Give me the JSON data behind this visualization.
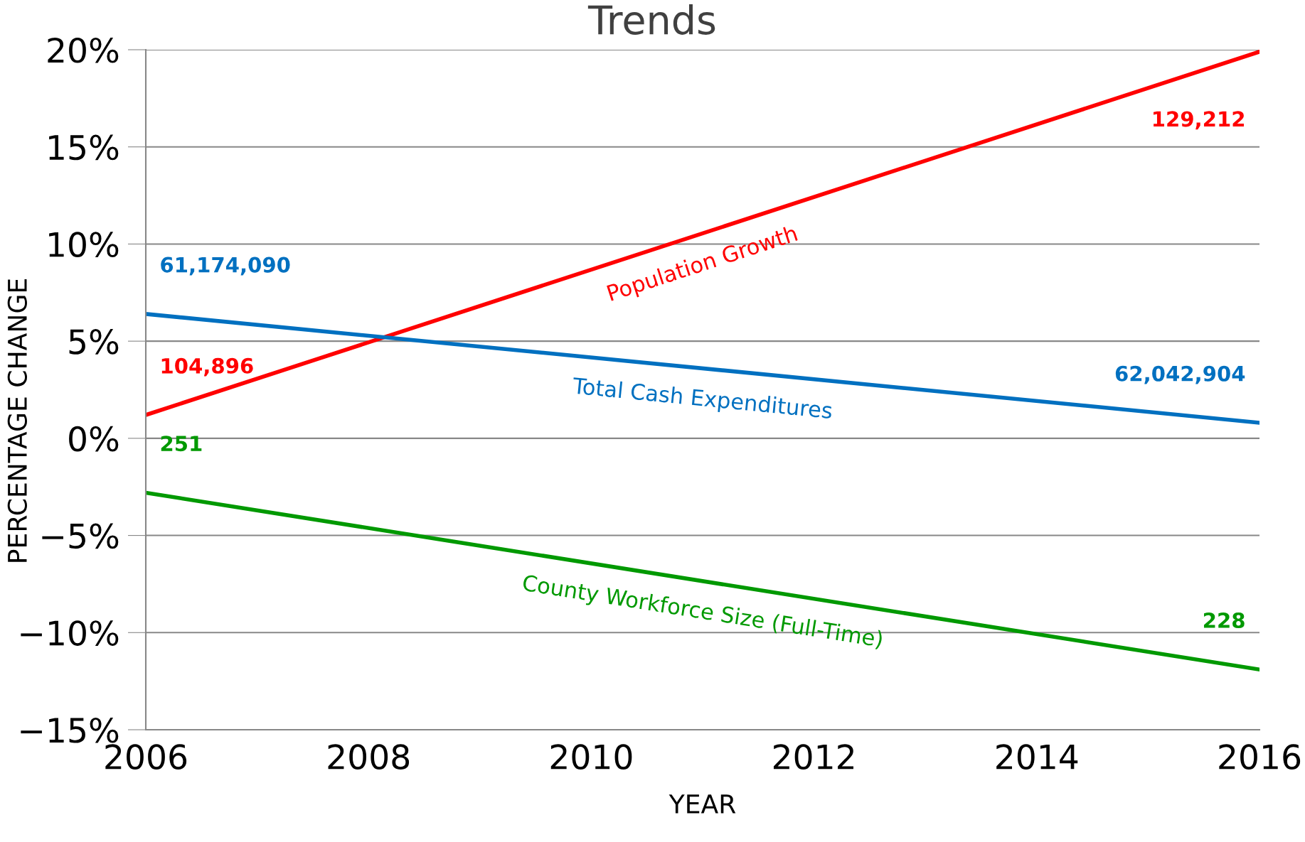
{
  "chart_data": {
    "type": "line",
    "title": "Trends",
    "xlabel": "YEAR",
    "ylabel": "PERCENTAGE CHANGE",
    "x": [
      2006,
      2016
    ],
    "series": [
      {
        "name": "Population Growth",
        "color": "#ff0000",
        "values": [
          1.2,
          19.9
        ]
      },
      {
        "name": "Total Cash Expenditures",
        "color": "#0070c0",
        "values": [
          6.4,
          0.8
        ]
      },
      {
        "name": "County Workforce Size (Full-Time)",
        "color": "#009900",
        "values": [
          -2.8,
          -11.9
        ]
      }
    ],
    "annotations": [
      "104,896",
      "129,212",
      "61,174,090",
      "62,042,904",
      "251",
      "228"
    ],
    "xlim": [
      2006,
      2016
    ],
    "xticks": [
      2006,
      2008,
      2010,
      2012,
      2014,
      2016
    ],
    "ylim": [
      -15,
      20
    ],
    "yticks": [
      {
        "value": -15,
        "label": "−15%"
      },
      {
        "value": -10,
        "label": "−10%"
      },
      {
        "value": -5,
        "label": "−5%"
      },
      {
        "value": 0,
        "label": "0%"
      },
      {
        "value": 5,
        "label": "5%"
      },
      {
        "value": 10,
        "label": "10%"
      },
      {
        "value": 15,
        "label": "15%"
      },
      {
        "value": 20,
        "label": "20%"
      }
    ],
    "grid": "y",
    "legend": false,
    "marker": "none",
    "line_style": "solid"
  }
}
